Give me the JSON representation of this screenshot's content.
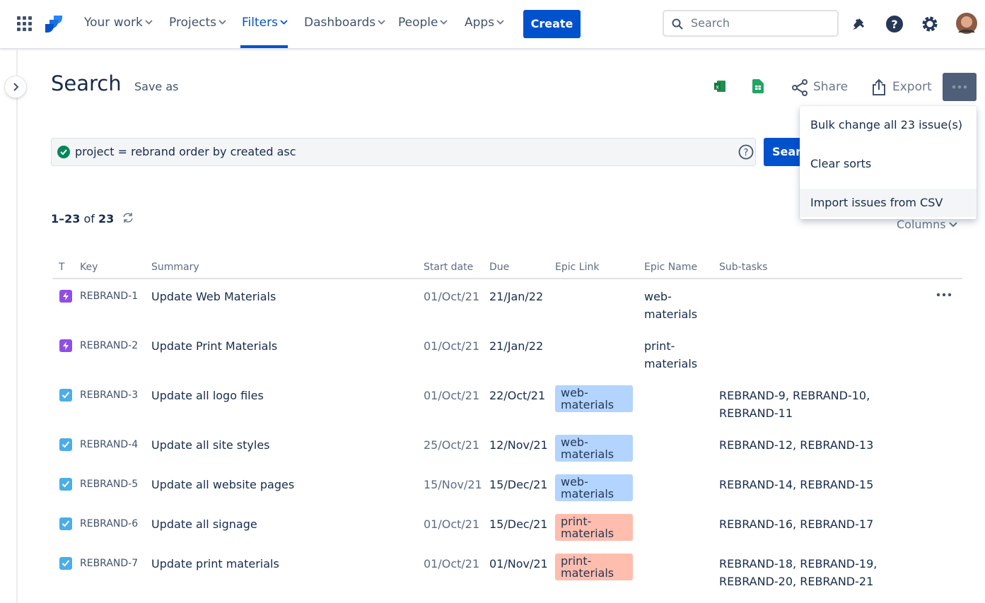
{
  "nav": {
    "items": [
      "Your work",
      "Projects",
      "Filters",
      "Dashboards",
      "People",
      "Apps"
    ],
    "create": "Create",
    "search": "Search"
  },
  "page": {
    "title": "Search",
    "save_as": "Save as",
    "share": "Share",
    "export": "Export"
  },
  "menu": [
    "Bulk change all 23 issue(s)",
    "Clear sorts",
    "Import issues from CSV"
  ],
  "query": {
    "text": "project = rebrand order by created asc",
    "button": "Search"
  },
  "results": {
    "range": "1–23",
    "of": "of",
    "total": "23",
    "columns": "Columns"
  },
  "table": {
    "headers": [
      "T",
      "Key",
      "Summary",
      "Start date",
      "Due",
      "Epic Link",
      "Epic Name",
      "Sub-tasks"
    ],
    "rows": [
      {
        "type": "epic",
        "key": "REBRAND-1",
        "summary": "Update Web Materials",
        "start": "01/Oct/21",
        "due": "21/Jan/22",
        "epic_link": null,
        "epic_name": "web-materials",
        "subtasks": null
      },
      {
        "type": "epic",
        "key": "REBRAND-2",
        "summary": "Update Print Materials",
        "start": "01/Oct/21",
        "due": "21/Jan/22",
        "epic_link": null,
        "epic_name": "print-materials",
        "subtasks": null
      },
      {
        "type": "task",
        "key": "REBRAND-3",
        "summary": "Update all logo files",
        "start": "01/Oct/21",
        "due": "22/Oct/21",
        "epic_link": "web-materials",
        "epic_color": "#b3d4ff",
        "epic_name": null,
        "subtasks": "REBRAND-9, REBRAND-10, REBRAND-11"
      },
      {
        "type": "task",
        "key": "REBRAND-4",
        "summary": "Update all site styles",
        "start": "25/Oct/21",
        "due": "12/Nov/21",
        "epic_link": "web-materials",
        "epic_color": "#b3d4ff",
        "epic_name": null,
        "subtasks": "REBRAND-12, REBRAND-13"
      },
      {
        "type": "task",
        "key": "REBRAND-5",
        "summary": "Update all website pages",
        "start": "15/Nov/21",
        "due": "15/Dec/21",
        "epic_link": "web-materials",
        "epic_color": "#b3d4ff",
        "epic_name": null,
        "subtasks": "REBRAND-14, REBRAND-15"
      },
      {
        "type": "task",
        "key": "REBRAND-6",
        "summary": "Update all signage",
        "start": "01/Oct/21",
        "due": "15/Dec/21",
        "epic_link": "print-materials",
        "epic_color": "#ffbdad",
        "epic_name": null,
        "subtasks": "REBRAND-16, REBRAND-17"
      },
      {
        "type": "task",
        "key": "REBRAND-7",
        "summary": "Update print materials",
        "start": "01/Oct/21",
        "due": "01/Nov/21",
        "epic_link": "print-materials",
        "epic_color": "#ffbdad",
        "epic_name": null,
        "subtasks": "REBRAND-18, REBRAND-19, REBRAND-20, REBRAND-21"
      }
    ]
  }
}
